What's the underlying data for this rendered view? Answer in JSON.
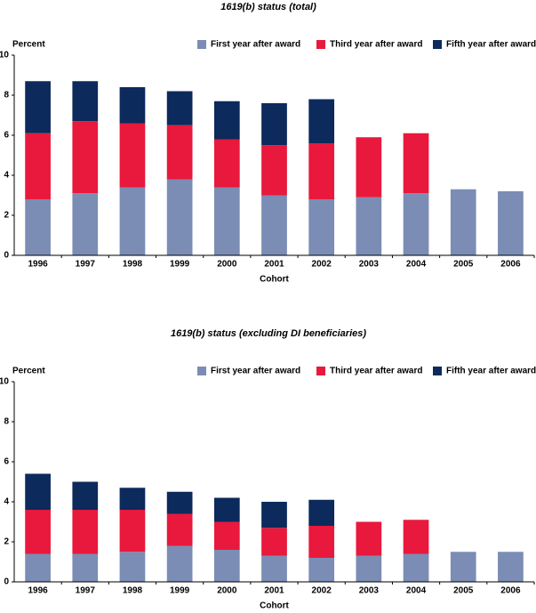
{
  "chart_data": [
    {
      "type": "bar",
      "stacked": true,
      "title": "1619(b) status (total)",
      "y_label": "Percent",
      "x_label": "Cohort",
      "categories": [
        "1996",
        "1997",
        "1998",
        "1999",
        "2000",
        "2001",
        "2002",
        "2003",
        "2004",
        "2005",
        "2006"
      ],
      "series": [
        {
          "name": "First year after award",
          "color": "#7b8db5",
          "values": [
            2.8,
            3.1,
            3.4,
            3.8,
            3.4,
            3.0,
            2.8,
            2.9,
            3.1,
            3.3,
            3.2
          ]
        },
        {
          "name": "Third year after award",
          "color": "#e8193c",
          "values": [
            3.3,
            3.6,
            3.2,
            2.7,
            2.4,
            2.5,
            2.8,
            3.0,
            3.0,
            null,
            null
          ]
        },
        {
          "name": "Fifth year after award",
          "color": "#0c2a5b",
          "values": [
            2.6,
            2.0,
            1.8,
            1.7,
            1.9,
            2.1,
            2.2,
            null,
            null,
            null,
            null
          ]
        }
      ],
      "ylim": [
        0,
        10
      ],
      "yticks": [
        0,
        2,
        4,
        6,
        8,
        10
      ]
    },
    {
      "type": "bar",
      "stacked": true,
      "title": "1619(b) status (excluding DI beneficiaries)",
      "y_label": "Percent",
      "x_label": "Cohort",
      "categories": [
        "1996",
        "1997",
        "1998",
        "1999",
        "2000",
        "2001",
        "2002",
        "2003",
        "2004",
        "2005",
        "2006"
      ],
      "series": [
        {
          "name": "First year after award",
          "color": "#7b8db5",
          "values": [
            1.4,
            1.4,
            1.5,
            1.8,
            1.6,
            1.3,
            1.2,
            1.3,
            1.4,
            1.5,
            1.5
          ]
        },
        {
          "name": "Third year after award",
          "color": "#e8193c",
          "values": [
            2.2,
            2.2,
            2.1,
            1.6,
            1.4,
            1.4,
            1.6,
            1.7,
            1.7,
            null,
            null
          ]
        },
        {
          "name": "Fifth year after award",
          "color": "#0c2a5b",
          "values": [
            1.8,
            1.4,
            1.1,
            1.1,
            1.2,
            1.3,
            1.3,
            null,
            null,
            null,
            null
          ]
        }
      ],
      "ylim": [
        0,
        10
      ],
      "yticks": [
        0,
        2,
        4,
        6,
        8,
        10
      ]
    }
  ]
}
